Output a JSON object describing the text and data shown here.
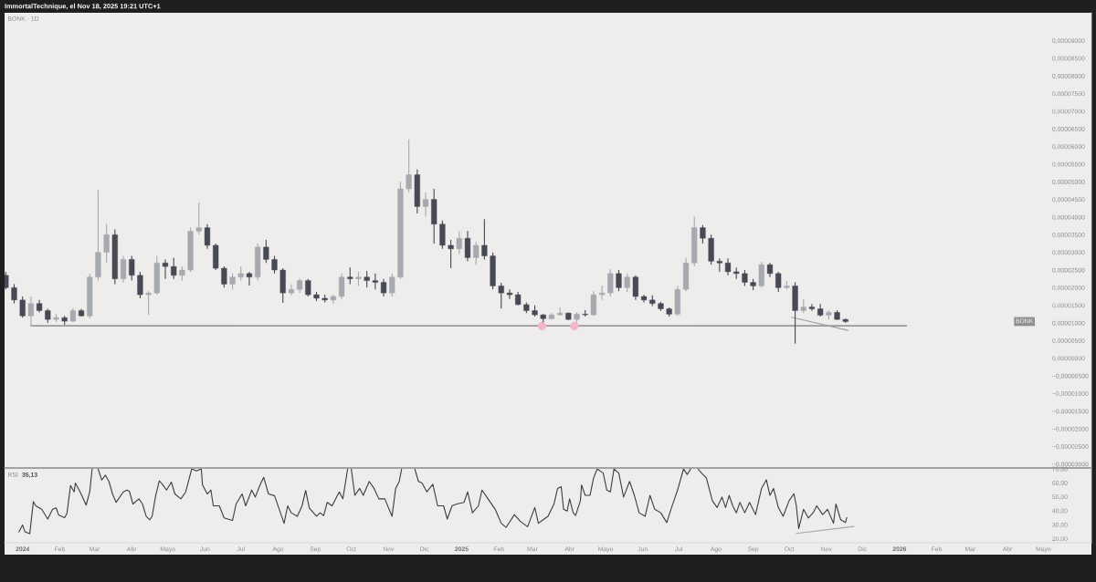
{
  "chart_data": [
    {
      "type": "candlestick",
      "title": "BONK · 1D",
      "annotations": [
        "ImmortalTechnique, el Nov 18, 2025 19:21 UTC+1",
        "BONK"
      ],
      "x": [
        "2023-12-18",
        "2023-12-25",
        "2024-01-01",
        "2024-01-08",
        "2024-01-15",
        "2024-01-22",
        "2024-01-29",
        "2024-02-05",
        "2024-02-12",
        "2024-02-19",
        "2024-02-26",
        "2024-03-04",
        "2024-03-11",
        "2024-03-18",
        "2024-03-25",
        "2024-04-01",
        "2024-04-08",
        "2024-04-15",
        "2024-04-22",
        "2024-04-29",
        "2024-05-06",
        "2024-05-13",
        "2024-05-20",
        "2024-05-27",
        "2024-06-03",
        "2024-06-10",
        "2024-06-17",
        "2024-06-24",
        "2024-07-01",
        "2024-07-08",
        "2024-07-15",
        "2024-07-22",
        "2024-07-29",
        "2024-08-05",
        "2024-08-12",
        "2024-08-19",
        "2024-08-26",
        "2024-09-02",
        "2024-09-09",
        "2024-09-16",
        "2024-09-23",
        "2024-09-30",
        "2024-10-07",
        "2024-10-14",
        "2024-10-21",
        "2024-10-28",
        "2024-11-04",
        "2024-11-11",
        "2024-11-18",
        "2024-11-25",
        "2024-12-02",
        "2024-12-09",
        "2024-12-16",
        "2024-12-23",
        "2024-12-30",
        "2025-01-06",
        "2025-01-13",
        "2025-01-20",
        "2025-01-27",
        "2025-02-03",
        "2025-02-10",
        "2025-02-17",
        "2025-02-24",
        "2025-03-03",
        "2025-03-10",
        "2025-03-17",
        "2025-03-24",
        "2025-03-31",
        "2025-04-07",
        "2025-04-14",
        "2025-04-21",
        "2025-04-28",
        "2025-05-05",
        "2025-05-12",
        "2025-05-19",
        "2025-05-26",
        "2025-06-02",
        "2025-06-09",
        "2025-06-16",
        "2025-06-23",
        "2025-06-30",
        "2025-07-07",
        "2025-07-14",
        "2025-07-21",
        "2025-07-28",
        "2025-08-04",
        "2025-08-11",
        "2025-08-18",
        "2025-08-25",
        "2025-09-01",
        "2025-09-08",
        "2025-09-15",
        "2025-09-22",
        "2025-09-29",
        "2025-10-06",
        "2025-10-13",
        "2025-10-20",
        "2025-10-27",
        "2025-11-03",
        "2025-11-10",
        "2025-11-17"
      ],
      "ohlc": [
        [
          2.35e-05,
          2.45e-05,
          1.95e-05,
          2e-05
        ],
        [
          2e-05,
          2.1e-05,
          1.55e-05,
          1.65e-05
        ],
        [
          1.65e-05,
          1.75e-05,
          1.15e-05,
          1.2e-05
        ],
        [
          1.2e-05,
          1.75e-05,
          9.2e-06,
          1.55e-05
        ],
        [
          1.55e-05,
          1.65e-05,
          1.3e-05,
          1.35e-05
        ],
        [
          1.35e-05,
          1.4e-05,
          1e-05,
          1.1e-05
        ],
        [
          1.1e-05,
          1.25e-05,
          1.03e-05,
          1.15e-05
        ],
        [
          1.15e-05,
          1.2e-05,
          9.5e-06,
          1.05e-05
        ],
        [
          1.05e-05,
          1.42e-05,
          1.02e-05,
          1.35e-05
        ],
        [
          1.35e-05,
          1.4e-05,
          1.18e-05,
          1.2e-05
        ],
        [
          1.2e-05,
          2.4e-05,
          1.13e-05,
          2.3e-05
        ],
        [
          2.3e-05,
          4.77e-05,
          2.2e-05,
          3e-05
        ],
        [
          3e-05,
          3.8e-05,
          2.7e-05,
          3.5e-05
        ],
        [
          3.5e-05,
          3.65e-05,
          2.1e-05,
          2.25e-05
        ],
        [
          2.25e-05,
          2.9e-05,
          2.15e-05,
          2.8e-05
        ],
        [
          2.8e-05,
          2.9e-05,
          2.2e-05,
          2.35e-05
        ],
        [
          2.35e-05,
          2.45e-05,
          1.7e-05,
          1.8e-05
        ],
        [
          1.8e-05,
          1.9e-05,
          1.23e-05,
          1.85e-05
        ],
        [
          1.85e-05,
          2.9e-05,
          1.8e-05,
          2.7e-05
        ],
        [
          2.7e-05,
          2.8e-05,
          2.25e-05,
          2.6e-05
        ],
        [
          2.6e-05,
          2.85e-05,
          2.25e-05,
          2.35e-05
        ],
        [
          2.35e-05,
          2.6e-05,
          2.2e-05,
          2.5e-05
        ],
        [
          2.5e-05,
          3.7e-05,
          2.45e-05,
          3.6e-05
        ],
        [
          3.6e-05,
          4.41e-05,
          3.5e-05,
          3.7e-05
        ],
        [
          3.7e-05,
          3.8e-05,
          3.1e-05,
          3.2e-05
        ],
        [
          3.2e-05,
          3.25e-05,
          2.5e-05,
          2.55e-05
        ],
        [
          2.55e-05,
          2.6e-05,
          2e-05,
          2.1e-05
        ],
        [
          2.1e-05,
          2.4e-05,
          1.95e-05,
          2.3e-05
        ],
        [
          2.3e-05,
          2.6e-05,
          2.2e-05,
          2.4e-05
        ],
        [
          2.4e-05,
          2.45e-05,
          2.06e-05,
          2.3e-05
        ],
        [
          2.3e-05,
          3.25e-05,
          2.2e-05,
          3.15e-05
        ],
        [
          3.15e-05,
          3.35e-05,
          2.7e-05,
          2.8e-05
        ],
        [
          2.8e-05,
          2.9e-05,
          2.4e-05,
          2.5e-05
        ],
        [
          2.5e-05,
          2.55e-05,
          1.57e-05,
          1.85e-05
        ],
        [
          1.85e-05,
          2.1e-05,
          1.78e-05,
          1.95e-05
        ],
        [
          1.95e-05,
          2.26e-05,
          1.85e-05,
          2.2e-05
        ],
        [
          2.2e-05,
          2.25e-05,
          1.75e-05,
          1.8e-05
        ],
        [
          1.8e-05,
          1.88e-05,
          1.62e-05,
          1.7e-05
        ],
        [
          1.7e-05,
          1.8e-05,
          1.58e-05,
          1.65e-05
        ],
        [
          1.65e-05,
          1.8e-05,
          1.54e-05,
          1.75e-05
        ],
        [
          1.75e-05,
          2.4e-05,
          1.68e-05,
          2.3e-05
        ],
        [
          2.3e-05,
          2.57e-05,
          2.1e-05,
          2.25e-05
        ],
        [
          2.25e-05,
          2.45e-05,
          2.05e-05,
          2.3e-05
        ],
        [
          2.3e-05,
          2.47e-05,
          2e-05,
          2.2e-05
        ],
        [
          2.2e-05,
          2.4e-05,
          1.95e-05,
          2.15e-05
        ],
        [
          2.15e-05,
          2.25e-05,
          1.75e-05,
          1.85e-05
        ],
        [
          1.85e-05,
          2.4e-05,
          1.75e-05,
          2.3e-05
        ],
        [
          2.3e-05,
          5e-05,
          2.25e-05,
          4.8e-05
        ],
        [
          4.8e-05,
          6.2e-05,
          4.7e-05,
          5.2e-05
        ],
        [
          5.2e-05,
          5.35e-05,
          4.1e-05,
          4.3e-05
        ],
        [
          4.3e-05,
          4.7e-05,
          4.02e-05,
          4.5e-05
        ],
        [
          4.5e-05,
          4.8e-05,
          3.25e-05,
          3.8e-05
        ],
        [
          3.8e-05,
          3.9e-05,
          3.1e-05,
          3.2e-05
        ],
        [
          3.2e-05,
          3.35e-05,
          2.55e-05,
          3.1e-05
        ],
        [
          3.1e-05,
          3.6e-05,
          2.95e-05,
          3.4e-05
        ],
        [
          3.4e-05,
          3.61e-05,
          2.75e-05,
          2.85e-05
        ],
        [
          2.85e-05,
          3.3e-05,
          2.65e-05,
          3.2e-05
        ],
        [
          3.2e-05,
          3.94e-05,
          2.8e-05,
          2.9e-05
        ],
        [
          2.9e-05,
          3e-05,
          1.95e-05,
          2.05e-05
        ],
        [
          2.05e-05,
          2.14e-05,
          1.41e-05,
          1.85e-05
        ],
        [
          1.85e-05,
          1.95e-05,
          1.68e-05,
          1.8e-05
        ],
        [
          1.8e-05,
          1.88e-05,
          1.5e-05,
          1.52e-05
        ],
        [
          1.52e-05,
          1.58e-05,
          1.28e-05,
          1.35e-05
        ],
        [
          1.35e-05,
          1.5e-05,
          1.18e-05,
          1.23e-05
        ],
        [
          1.23e-05,
          1.25e-05,
          1.02e-05,
          1.12e-05
        ],
        [
          1.12e-05,
          1.28e-05,
          1.09e-05,
          1.23e-05
        ],
        [
          1.23e-05,
          1.44e-05,
          1.2e-05,
          1.28e-05
        ],
        [
          1.28e-05,
          1.3e-05,
          1.08e-05,
          1.1e-05
        ],
        [
          1.1e-05,
          1.3e-05,
          1.02e-05,
          1.25e-05
        ],
        [
          1.25e-05,
          1.36e-05,
          1.18e-05,
          1.23e-05
        ],
        [
          1.23e-05,
          1.9e-05,
          1.2e-05,
          1.8e-05
        ],
        [
          1.8e-05,
          2.06e-05,
          1.65e-05,
          1.85e-05
        ],
        [
          1.85e-05,
          2.52e-05,
          1.75e-05,
          2.4e-05
        ],
        [
          2.4e-05,
          2.5e-05,
          1.9e-05,
          2e-05
        ],
        [
          2e-05,
          2.4e-05,
          1.88e-05,
          2.3e-05
        ],
        [
          2.3e-05,
          2.35e-05,
          1.65e-05,
          1.75e-05
        ],
        [
          1.75e-05,
          1.8e-05,
          1.58e-05,
          1.65e-05
        ],
        [
          1.65e-05,
          1.78e-05,
          1.48e-05,
          1.55e-05
        ],
        [
          1.55e-05,
          1.6e-05,
          1.34e-05,
          1.4e-05
        ],
        [
          1.4e-05,
          1.44e-05,
          1.18e-05,
          1.25e-05
        ],
        [
          1.25e-05,
          2.05e-05,
          1.2e-05,
          1.95e-05
        ],
        [
          1.95e-05,
          2.85e-05,
          1.9e-05,
          2.7e-05
        ],
        [
          2.7e-05,
          4.02e-05,
          2.6e-05,
          3.7e-05
        ],
        [
          3.7e-05,
          3.77e-05,
          3.25e-05,
          3.4e-05
        ],
        [
          3.4e-05,
          3.5e-05,
          2.65e-05,
          2.75e-05
        ],
        [
          2.75e-05,
          2.83e-05,
          2.45e-05,
          2.7e-05
        ],
        [
          2.7e-05,
          2.83e-05,
          2.35e-05,
          2.45e-05
        ],
        [
          2.45e-05,
          2.57e-05,
          2.25e-05,
          2.4e-05
        ],
        [
          2.4e-05,
          2.5e-05,
          2.05e-05,
          2.15e-05
        ],
        [
          2.15e-05,
          2.25e-05,
          1.93e-05,
          2.05e-05
        ],
        [
          2.05e-05,
          2.73e-05,
          2e-05,
          2.65e-05
        ],
        [
          2.65e-05,
          2.7e-05,
          2.3e-05,
          2.4e-05
        ],
        [
          2.4e-05,
          2.45e-05,
          1.88e-05,
          2e-05
        ],
        [
          2e-05,
          2.19e-05,
          1.95e-05,
          2.05e-05
        ],
        [
          2.05e-05,
          2.15e-05,
          4.1e-06,
          1.35e-05
        ],
        [
          1.35e-05,
          1.67e-05,
          1.28e-05,
          1.45e-05
        ],
        [
          1.45e-05,
          1.54e-05,
          1.34e-05,
          1.4e-05
        ],
        [
          1.4e-05,
          1.54e-05,
          1.18e-05,
          1.22e-05
        ],
        [
          1.22e-05,
          1.36e-05,
          1.1e-05,
          1.3e-05
        ],
        [
          1.3e-05,
          1.36e-05,
          1.08e-05,
          1.1e-05
        ],
        [
          1.1e-05,
          1.12e-05,
          1e-05,
          1.04e-05
        ]
      ],
      "colors": [
        "#474a55",
        "#474a55",
        "#474a55",
        "#a7a9b0",
        "#474a55",
        "#474a55",
        "#a7a9b0",
        "#474a55",
        "#a7a9b0",
        "#474a55",
        "#a7a9b0",
        "#a7a9b0",
        "#a7a9b0",
        "#474a55",
        "#a7a9b0",
        "#474a55",
        "#474a55",
        "#a7a9b0",
        "#a7a9b0",
        "#474a55",
        "#474a55",
        "#a7a9b0",
        "#a7a9b0",
        "#a7a9b0",
        "#474a55",
        "#474a55",
        "#474a55",
        "#a7a9b0",
        "#a7a9b0",
        "#474a55",
        "#a7a9b0",
        "#474a55",
        "#474a55",
        "#474a55",
        "#a7a9b0",
        "#a7a9b0",
        "#474a55",
        "#474a55",
        "#474a55",
        "#a7a9b0",
        "#a7a9b0",
        "#474a55",
        "#a7a9b0",
        "#474a55",
        "#474a55",
        "#474a55",
        "#a7a9b0",
        "#a7a9b0",
        "#a7a9b0",
        "#474a55",
        "#a7a9b0",
        "#474a55",
        "#474a55",
        "#474a55",
        "#a7a9b0",
        "#474a55",
        "#a7a9b0",
        "#474a55",
        "#474a55",
        "#474a55",
        "#474a55",
        "#474a55",
        "#474a55",
        "#474a55",
        "#474a55",
        "#a7a9b0",
        "#a7a9b0",
        "#474a55",
        "#a7a9b0",
        "#474a55",
        "#a7a9b0",
        "#a7a9b0",
        "#a7a9b0",
        "#474a55",
        "#a7a9b0",
        "#474a55",
        "#474a55",
        "#474a55",
        "#474a55",
        "#474a55",
        "#a7a9b0",
        "#a7a9b0",
        "#a7a9b0",
        "#474a55",
        "#474a55",
        "#474a55",
        "#474a55",
        "#474a55",
        "#474a55",
        "#474a55",
        "#a7a9b0",
        "#474a55",
        "#474a55",
        "#a7a9b0",
        "#474a55",
        "#a7a9b0",
        "#474a55",
        "#474a55",
        "#a7a9b0",
        "#474a55",
        "#474a55"
      ],
      "series": [
        {
          "type": "line",
          "color": "#7a7a7a",
          "x": [
            "2024-01-08",
            "2026-01-07"
          ],
          "values": [
            9.2e-06,
            9.2e-06
          ]
        },
        {
          "type": "line",
          "color": "#a0a0a0",
          "x": [
            "2025-10-03",
            "2025-11-19"
          ],
          "values": [
            1.16e-05,
            7.9e-06
          ]
        },
        {
          "type": "scatter",
          "color": "#f3b7c9",
          "marker": "circle",
          "x": [
            "2025-03-09",
            "2025-04-05"
          ],
          "values": [
            9.1e-06,
            9.1e-06
          ]
        }
      ],
      "xlim": [
        "2023-12-17",
        "2026-06-10"
      ],
      "ylim": [
        -3.11e-05,
        9.79e-05
      ],
      "yticks": [
        {
          "value": 9e-05,
          "label": "0,00009000"
        },
        {
          "value": 8.5e-05,
          "label": "0,00008500"
        },
        {
          "value": 8e-05,
          "label": "0,00008000"
        },
        {
          "value": 7.5e-05,
          "label": "0,00007500"
        },
        {
          "value": 7e-05,
          "label": "0,00007000"
        },
        {
          "value": 6.5e-05,
          "label": "0,00006500"
        },
        {
          "value": 6e-05,
          "label": "0,00006000"
        },
        {
          "value": 5.5e-05,
          "label": "0,00005500"
        },
        {
          "value": 5e-05,
          "label": "0,00005000"
        },
        {
          "value": 4.5e-05,
          "label": "0,00004500"
        },
        {
          "value": 4e-05,
          "label": "0,00004000"
        },
        {
          "value": 3.5e-05,
          "label": "0,00003500"
        },
        {
          "value": 3e-05,
          "label": "0,00003000"
        },
        {
          "value": 2.5e-05,
          "label": "0,00002500"
        },
        {
          "value": 2e-05,
          "label": "0,00002000"
        },
        {
          "value": 1.5e-05,
          "label": "0,00001500"
        },
        {
          "value": 1e-05,
          "label": "0,00001000"
        },
        {
          "value": 5e-06,
          "label": "0,00000500"
        },
        {
          "value": 0,
          "label": "0,00000000"
        },
        {
          "value": -5e-06,
          "label": "−0,00000500"
        },
        {
          "value": -1e-05,
          "label": "−0,00001000"
        },
        {
          "value": -1.5e-05,
          "label": "−0,00001500"
        },
        {
          "value": -2e-05,
          "label": "−0,00002000"
        },
        {
          "value": -2.5e-05,
          "label": "−0,00002500"
        },
        {
          "value": -3e-05,
          "label": "−0,00003000"
        }
      ],
      "tick_labels": "y"
    },
    {
      "type": "line",
      "title": "RSI",
      "annotations": [
        "35,13"
      ],
      "series": [
        {
          "color": "#3d3d3d",
          "x": [
            "2023-12-29",
            "2024-01-01",
            "2024-01-03",
            "2024-01-07",
            "2024-01-10",
            "2024-01-12",
            "2024-01-17",
            "2024-01-22",
            "2024-01-26",
            "2024-01-29",
            "2024-01-31",
            "2024-02-05",
            "2024-02-07",
            "2024-02-10",
            "2024-02-13",
            "2024-02-14",
            "2024-02-18",
            "2024-02-23",
            "2024-02-26",
            "2024-02-28",
            "2024-03-02",
            "2024-03-04",
            "2024-03-07",
            "2024-03-10",
            "2024-03-13",
            "2024-03-16",
            "2024-03-19",
            "2024-03-25",
            "2024-03-28",
            "2024-03-30",
            "2024-04-02",
            "2024-04-07",
            "2024-04-10",
            "2024-04-13",
            "2024-04-16",
            "2024-04-18",
            "2024-04-21",
            "2024-04-24",
            "2024-04-27",
            "2024-04-30",
            "2024-05-04",
            "2024-05-07",
            "2024-05-12",
            "2024-05-16",
            "2024-05-21",
            "2024-05-25",
            "2024-05-29",
            "2024-05-30",
            "2024-06-03",
            "2024-06-06",
            "2024-06-08",
            "2024-06-13",
            "2024-06-17",
            "2024-06-24",
            "2024-06-27",
            "2024-07-02",
            "2024-07-05",
            "2024-07-10",
            "2024-07-13",
            "2024-07-17",
            "2024-07-20",
            "2024-07-24",
            "2024-07-29",
            "2024-08-02",
            "2024-08-06",
            "2024-08-09",
            "2024-08-12",
            "2024-08-17",
            "2024-08-21",
            "2024-08-24",
            "2024-08-27",
            "2024-09-02",
            "2024-09-05",
            "2024-09-08",
            "2024-09-11",
            "2024-09-15",
            "2024-09-21",
            "2024-09-24",
            "2024-09-28",
            "2024-09-30",
            "2024-10-01",
            "2024-10-04",
            "2024-10-08",
            "2024-10-11",
            "2024-10-16",
            "2024-10-20",
            "2024-10-24",
            "2024-10-29",
            "2024-11-04",
            "2024-11-07",
            "2024-11-10",
            "2024-11-12",
            "2024-11-17",
            "2024-11-23",
            "2024-11-26",
            "2024-11-29",
            "2024-12-03",
            "2024-12-08",
            "2024-12-12",
            "2024-12-17",
            "2024-12-20",
            "2024-12-24",
            "2024-12-28",
            "2025-01-03",
            "2025-01-06",
            "2025-01-10",
            "2025-01-15",
            "2025-01-18",
            "2025-01-23",
            "2025-01-29",
            "2025-02-03",
            "2025-02-07",
            "2025-02-14",
            "2025-02-19",
            "2025-02-25",
            "2025-03-03",
            "2025-03-06",
            "2025-03-10",
            "2025-03-14",
            "2025-03-19",
            "2025-03-22",
            "2025-03-25",
            "2025-03-27",
            "2025-03-30",
            "2025-04-01",
            "2025-04-04",
            "2025-04-06",
            "2025-04-10",
            "2025-04-11",
            "2025-04-14",
            "2025-04-18",
            "2025-04-21",
            "2025-04-24",
            "2025-04-29",
            "2025-05-02",
            "2025-05-05",
            "2025-05-08",
            "2025-05-12",
            "2025-05-16",
            "2025-05-21",
            "2025-05-25",
            "2025-05-29",
            "2025-06-03",
            "2025-06-07",
            "2025-06-11",
            "2025-06-16",
            "2025-06-21",
            "2025-06-25",
            "2025-06-28",
            "2025-06-30",
            "2025-07-05",
            "2025-07-08",
            "2025-07-11",
            "2025-07-14",
            "2025-07-17",
            "2025-07-20",
            "2025-07-24",
            "2025-07-29",
            "2025-08-02",
            "2025-08-06",
            "2025-08-09",
            "2025-08-12",
            "2025-08-15",
            "2025-08-18",
            "2025-08-21",
            "2025-08-25",
            "2025-08-29",
            "2025-09-03",
            "2025-09-08",
            "2025-09-12",
            "2025-09-15",
            "2025-09-18",
            "2025-09-22",
            "2025-09-26",
            "2025-10-01",
            "2025-10-05",
            "2025-10-07",
            "2025-10-09",
            "2025-10-13",
            "2025-10-17",
            "2025-10-21",
            "2025-10-24",
            "2025-10-29",
            "2025-11-02",
            "2025-11-07",
            "2025-11-09",
            "2025-11-13",
            "2025-11-17",
            "2025-11-18"
          ],
          "values": [
            24.8,
            29.8,
            24.8,
            23.5,
            46.5,
            43.5,
            41,
            34,
            41,
            42,
            37,
            35,
            38,
            58,
            53.5,
            59.8,
            53.5,
            44,
            53.5,
            70,
            null,
            70,
            62,
            65.5,
            61,
            52,
            46,
            53.5,
            54.8,
            54,
            44.8,
            48.5,
            44.8,
            36,
            33.5,
            36,
            51,
            61.5,
            58.5,
            54.8,
            60.5,
            52,
            48.5,
            53.5,
            70,
            68.5,
            70,
            58.5,
            52,
            54.8,
            43.5,
            43.5,
            34.8,
            33,
            44.8,
            52,
            43.5,
            54.8,
            49.8,
            58.5,
            64,
            52,
            50.8,
            41,
            31,
            43.5,
            38.5,
            36,
            43.5,
            54.5,
            42,
            36,
            38.5,
            36.5,
            46,
            43.5,
            53.5,
            48.5,
            70,
            null,
            70,
            51,
            56,
            51,
            61,
            56,
            48.5,
            48.5,
            36,
            56,
            61,
            70,
            null,
            70,
            61,
            59.8,
            53.5,
            59,
            43.5,
            43.5,
            34,
            43.5,
            44.8,
            46,
            53.5,
            38.5,
            43.5,
            54.8,
            48.5,
            41,
            31,
            28,
            37.2,
            32.3,
            28.5,
            42.3,
            31,
            33.5,
            36,
            44.8,
            56,
            57.2,
            41,
            39.8,
            48.5,
            38.5,
            36.5,
            47.2,
            58.5,
            51,
            51,
            63.5,
            70,
            67,
            54.8,
            53.5,
            70,
            67,
            49.8,
            61,
            51,
            38.5,
            36,
            51,
            41,
            38.5,
            31.5,
            42.3,
            49.8,
            54.8,
            70,
            66,
            70,
            null,
            70,
            67,
            63.5,
            47.2,
            42.3,
            49.8,
            42.3,
            51,
            43.5,
            38.5,
            46,
            38.5,
            46,
            37.2,
            56,
            62.2,
            51,
            56,
            42.3,
            36,
            47.2,
            52.2,
            43.5,
            27.2,
            41,
            34.8,
            38.5,
            43.5,
            37.2,
            41,
            31,
            44.8,
            33.5,
            31.5,
            35.13
          ]
        },
        {
          "color": "#a8a8a8",
          "x": [
            "2025-10-07",
            "2025-11-24"
          ],
          "values": [
            23.7,
            28.7
          ]
        }
      ],
      "xlim": [
        "2023-12-17",
        "2026-06-10"
      ],
      "ylim": [
        17,
        70
      ],
      "xticks": [
        {
          "value": "2024-01-01",
          "label": "2024"
        },
        {
          "value": "2024-02-01",
          "label": "Feb"
        },
        {
          "value": "2024-03-01",
          "label": "Mar"
        },
        {
          "value": "2024-04-01",
          "label": "Abr"
        },
        {
          "value": "2024-05-01",
          "label": "Mayo"
        },
        {
          "value": "2024-06-01",
          "label": "Jun"
        },
        {
          "value": "2024-07-01",
          "label": "Jul"
        },
        {
          "value": "2024-08-01",
          "label": "Ago"
        },
        {
          "value": "2024-09-01",
          "label": "Sep"
        },
        {
          "value": "2024-10-01",
          "label": "Oct"
        },
        {
          "value": "2024-11-01",
          "label": "Nov"
        },
        {
          "value": "2024-12-01",
          "label": "Dic"
        },
        {
          "value": "2025-01-01",
          "label": "2025"
        },
        {
          "value": "2025-02-01",
          "label": "Feb"
        },
        {
          "value": "2025-03-01",
          "label": "Mar"
        },
        {
          "value": "2025-04-01",
          "label": "Abr"
        },
        {
          "value": "2025-05-01",
          "label": "Mayo"
        },
        {
          "value": "2025-06-01",
          "label": "Jun"
        },
        {
          "value": "2025-07-01",
          "label": "Jul"
        },
        {
          "value": "2025-08-01",
          "label": "Ago"
        },
        {
          "value": "2025-09-01",
          "label": "Sep"
        },
        {
          "value": "2025-10-01",
          "label": "Oct"
        },
        {
          "value": "2025-11-01",
          "label": "Nov"
        },
        {
          "value": "2025-12-01",
          "label": "Dic"
        },
        {
          "value": "2026-01-01",
          "label": "2026"
        },
        {
          "value": "2026-02-01",
          "label": "Feb"
        },
        {
          "value": "2026-03-01",
          "label": "Mar"
        },
        {
          "value": "2026-04-01",
          "label": "Abr"
        },
        {
          "value": "2026-05-01",
          "label": "Mayo"
        }
      ],
      "yticks": [
        {
          "value": 20,
          "label": "20,00"
        },
        {
          "value": 30,
          "label": "30,00"
        },
        {
          "value": 40,
          "label": "40,00"
        },
        {
          "value": 50,
          "label": "50,00"
        },
        {
          "value": 60,
          "label": "60,00"
        },
        {
          "value": 70,
          "label": "70,00"
        }
      ]
    }
  ]
}
